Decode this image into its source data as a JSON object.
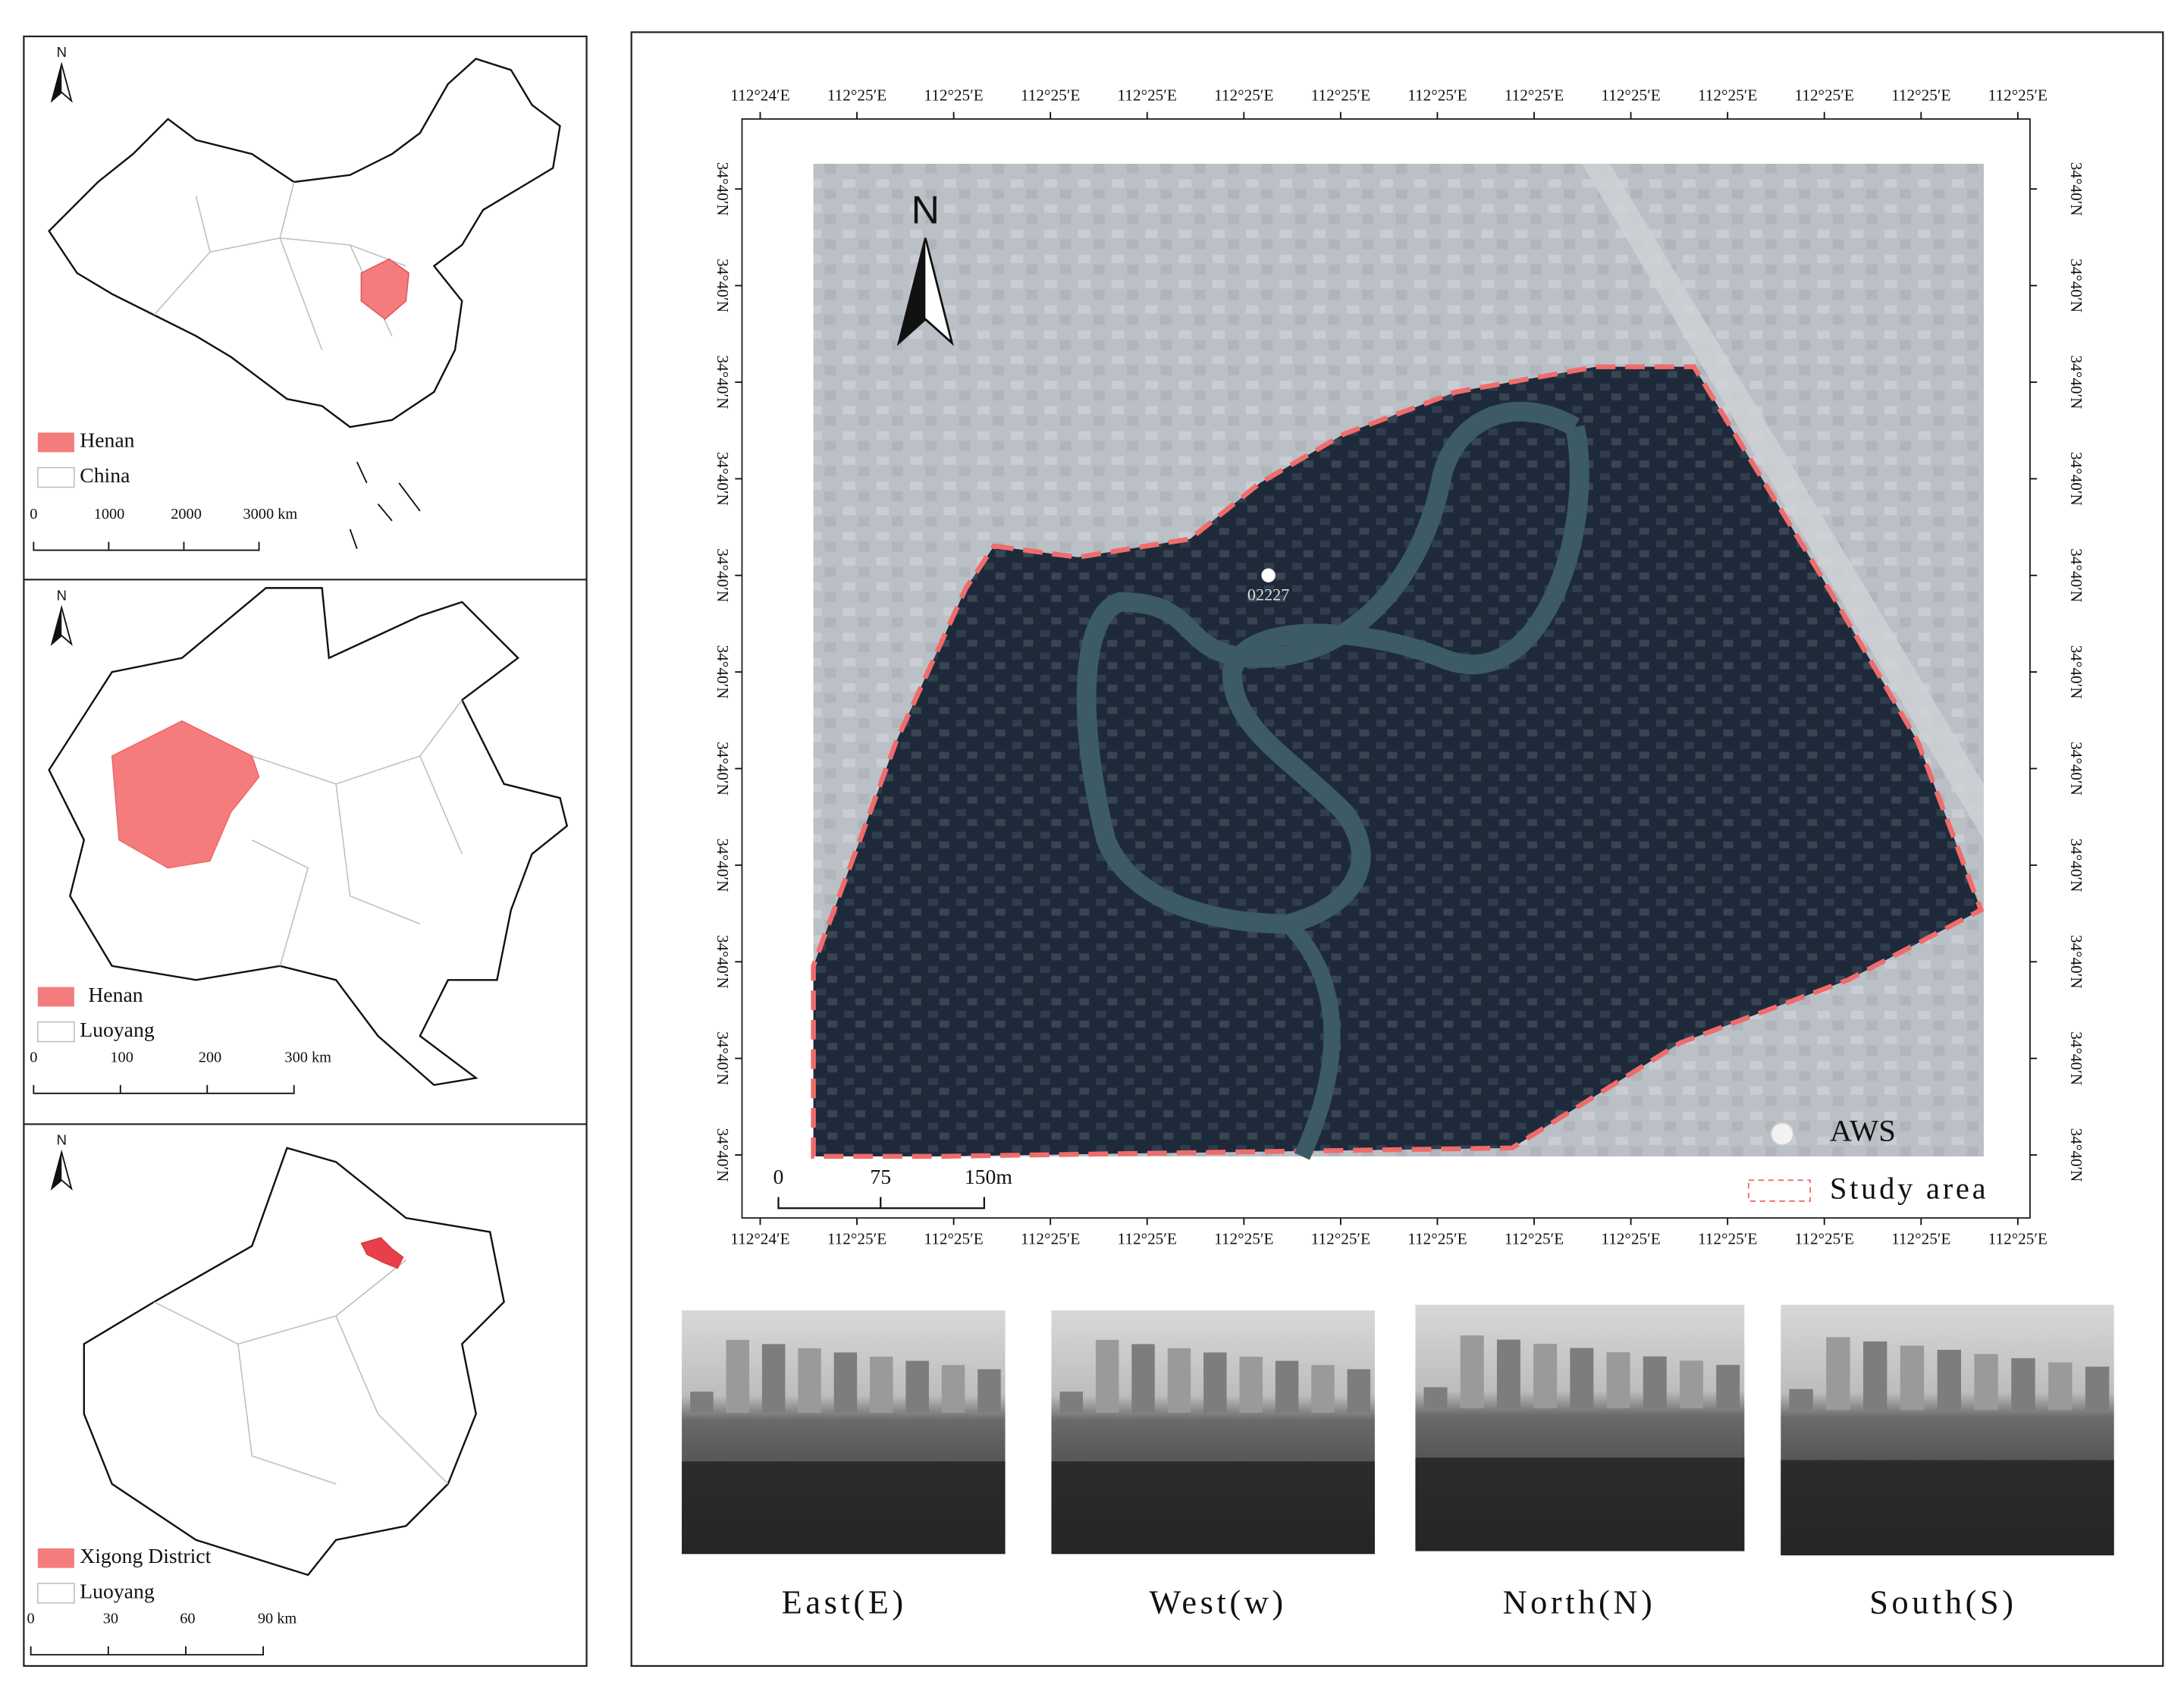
{
  "insets": [
    {
      "north": "N",
      "legend": [
        "Henan",
        "China"
      ],
      "scale_labels": [
        "0",
        "1000",
        "2000",
        "3000 km"
      ]
    },
    {
      "north": "N",
      "legend": [
        "Henan",
        "Luoyang"
      ],
      "scale_labels": [
        "0",
        "100",
        "200",
        "300 km"
      ]
    },
    {
      "north": "N",
      "legend": [
        "Xigong District",
        "Luoyang"
      ],
      "scale_labels": [
        "0",
        "30",
        "60",
        "90 km"
      ]
    }
  ],
  "main_map": {
    "north": "N",
    "lon_top": [
      "112°24′E",
      "112°25′E",
      "112°25′E",
      "112°25′E",
      "112°25′E",
      "112°25′E",
      "112°25′E",
      "112°25′E",
      "112°25′E",
      "112°25′E",
      "112°25′E",
      "112°25′E",
      "112°25′E",
      "112°25′E"
    ],
    "lon_bottom": [
      "112°24′E",
      "112°25′E",
      "112°25′E",
      "112°25′E",
      "112°25′E",
      "112°25′E",
      "112°25′E",
      "112°25′E",
      "112°25′E",
      "112°25′E",
      "112°25′E",
      "112°25′E",
      "112°25′E",
      "112°25′E"
    ],
    "lat_left": [
      "34°40′N",
      "34°40′N",
      "34°40′N",
      "34°40′N",
      "34°40′N",
      "34°40′N",
      "34°40′N",
      "34°40′N",
      "34°40′N",
      "34°40′N",
      "34°40′N"
    ],
    "lat_right": [
      "34°40′N",
      "34°40′N",
      "34°40′N",
      "34°40′N",
      "34°40′N",
      "34°40′N",
      "34°40′N",
      "34°40′N",
      "34°40′N",
      "34°40′N",
      "34°40′N"
    ],
    "station": "02227",
    "legend": [
      "AWS",
      "Study area"
    ],
    "scale_labels": [
      "0",
      "75",
      "150m"
    ]
  },
  "photos": [
    {
      "caption": "East(E)"
    },
    {
      "caption": "West(w)"
    },
    {
      "caption": "North(N)"
    },
    {
      "caption": "South(S)"
    }
  ]
}
